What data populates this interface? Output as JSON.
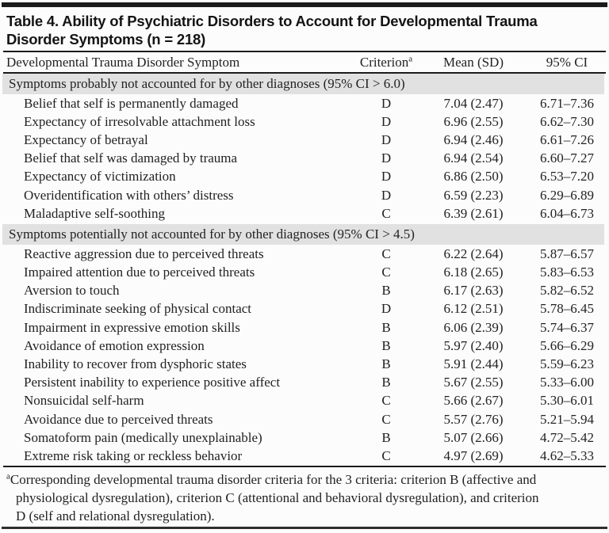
{
  "title": "Table 4. Ability of Psychiatric Disorders to Account for Developmental Trauma Disorder Symptoms (n = 218)",
  "columns": {
    "symptom": "Developmental Trauma Disorder Symptom",
    "criterion": "Criterion",
    "criterion_sup": "a",
    "mean": "Mean (SD)",
    "ci": "95% CI"
  },
  "sections": [
    {
      "header": "Symptoms probably not accounted for by other diagnoses (95% CI > 6.0)",
      "rows": [
        {
          "symptom": "Belief that self is permanently damaged",
          "criterion": "D",
          "mean_sd": "7.04 (2.47)",
          "ci": "6.71–7.36"
        },
        {
          "symptom": "Expectancy of irresolvable attachment loss",
          "criterion": "D",
          "mean_sd": "6.96 (2.55)",
          "ci": "6.62–7.30"
        },
        {
          "symptom": "Expectancy of betrayal",
          "criterion": "D",
          "mean_sd": "6.94 (2.46)",
          "ci": "6.61–7.26"
        },
        {
          "symptom": "Belief that self was damaged by trauma",
          "criterion": "D",
          "mean_sd": "6.94 (2.54)",
          "ci": "6.60–7.27"
        },
        {
          "symptom": "Expectancy of victimization",
          "criterion": "D",
          "mean_sd": "6.86 (2.50)",
          "ci": "6.53–7.20"
        },
        {
          "symptom": "Overidentification with others’ distress",
          "criterion": "D",
          "mean_sd": "6.59 (2.23)",
          "ci": "6.29–6.89"
        },
        {
          "symptom": "Maladaptive self-soothing",
          "criterion": "C",
          "mean_sd": "6.39 (2.61)",
          "ci": "6.04–6.73"
        }
      ]
    },
    {
      "header": "Symptoms potentially not accounted for by other diagnoses (95% CI > 4.5)",
      "rows": [
        {
          "symptom": "Reactive aggression due to perceived threats",
          "criterion": "C",
          "mean_sd": "6.22 (2.64)",
          "ci": "5.87–6.57"
        },
        {
          "symptom": "Impaired attention due to perceived threats",
          "criterion": "C",
          "mean_sd": "6.18 (2.65)",
          "ci": "5.83–6.53"
        },
        {
          "symptom": "Aversion to touch",
          "criterion": "B",
          "mean_sd": "6.17 (2.63)",
          "ci": "5.82–6.52"
        },
        {
          "symptom": "Indiscriminate seeking of physical contact",
          "criterion": "D",
          "mean_sd": "6.12 (2.51)",
          "ci": "5.78–6.45"
        },
        {
          "symptom": "Impairment in expressive emotion skills",
          "criterion": "B",
          "mean_sd": "6.06 (2.39)",
          "ci": "5.74–6.37"
        },
        {
          "symptom": "Avoidance of emotion expression",
          "criterion": "B",
          "mean_sd": "5.97 (2.40)",
          "ci": "5.66–6.29"
        },
        {
          "symptom": "Inability to recover from dysphoric states",
          "criterion": "B",
          "mean_sd": "5.91 (2.44)",
          "ci": "5.59–6.23"
        },
        {
          "symptom": "Persistent inability to experience positive affect",
          "criterion": "B",
          "mean_sd": "5.67 (2.55)",
          "ci": "5.33–6.00"
        },
        {
          "symptom": "Nonsuicidal self-harm",
          "criterion": "C",
          "mean_sd": "5.66 (2.67)",
          "ci": "5.30–6.01"
        },
        {
          "symptom": "Avoidance due to perceived threats",
          "criterion": "C",
          "mean_sd": "5.57 (2.76)",
          "ci": "5.21–5.94"
        },
        {
          "symptom": "Somatoform pain (medically unexplainable)",
          "criterion": "B",
          "mean_sd": "5.07 (2.66)",
          "ci": "4.72–5.42"
        },
        {
          "symptom": "Extreme risk taking or reckless behavior",
          "criterion": "C",
          "mean_sd": "4.97 (2.69)",
          "ci": "4.62–5.33"
        }
      ]
    }
  ],
  "footnote": {
    "marker": "a",
    "text": "Corresponding developmental trauma disorder criteria for the 3 criteria: criterion B (affective and physiological dysregulation), criterion C (attentional and behavioral dysregulation), and criterion D (self and relational dysregulation)."
  },
  "colors": {
    "section_band": "#e1e1e1",
    "rule": "#1c1c1c",
    "text": "#222222",
    "background": "#fcfcfc"
  }
}
